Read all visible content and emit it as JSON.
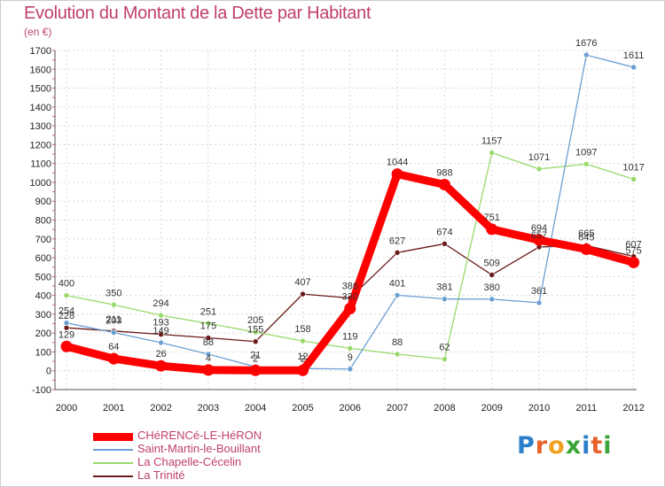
{
  "chart_data": {
    "type": "line",
    "title": "Evolution du Montant de la Dette par Habitant",
    "subtitle": "(en €)",
    "x": [
      "2000",
      "2001",
      "2002",
      "2003",
      "2004",
      "2005",
      "2006",
      "2007",
      "2008",
      "2009",
      "2010",
      "2011",
      "2012"
    ],
    "ylim": [
      -100,
      1700
    ],
    "yticks": [
      -100,
      0,
      100,
      200,
      300,
      400,
      500,
      600,
      700,
      800,
      900,
      1000,
      1100,
      1200,
      1300,
      1400,
      1500,
      1600,
      1700
    ],
    "grid": true,
    "legend_position": "bottom-left",
    "series": [
      {
        "name": "CHéRENCé-LE-HéRON",
        "color": "#ff0000",
        "values": [
          129,
          64,
          26,
          4,
          2,
          2,
          330,
          1044,
          988,
          751,
          694,
          645,
          575
        ],
        "labels": [
          "129",
          "64",
          "26",
          "4",
          "2",
          "2",
          "330",
          "1044",
          "988",
          "751",
          "694",
          "645",
          "575"
        ]
      },
      {
        "name": "Saint-Martin-le-Bouillant",
        "color": "#6a9fd4",
        "values": [
          254,
          203,
          149,
          88,
          21,
          12,
          9,
          401,
          381,
          380,
          361,
          1676,
          1611
        ],
        "labels": [
          "254",
          "203",
          "149",
          "88",
          "21",
          "12",
          "9",
          "401",
          "381",
          "380",
          "361",
          "1676",
          "1611"
        ]
      },
      {
        "name": "La Chapelle-Cécelin",
        "color": "#99d96a",
        "values": [
          400,
          350,
          294,
          251,
          205,
          158,
          119,
          88,
          62,
          1157,
          1071,
          1097,
          1017
        ],
        "labels": [
          "400",
          "350",
          "294",
          "251",
          "205",
          "158",
          "119",
          "88",
          "62",
          "1157",
          "1071",
          "1097",
          "1017"
        ]
      },
      {
        "name": "La Trinité",
        "color": "#6b1a1a",
        "values": [
          228,
          211,
          193,
          175,
          155,
          407,
          386,
          627,
          674,
          509,
          657,
          665,
          607
        ],
        "labels": [
          "228",
          "211",
          "193",
          "175",
          "155",
          "407",
          "386",
          "627",
          "674",
          "509",
          "657",
          "665",
          "607"
        ]
      }
    ]
  },
  "logo": {
    "text": "Proxiti"
  }
}
